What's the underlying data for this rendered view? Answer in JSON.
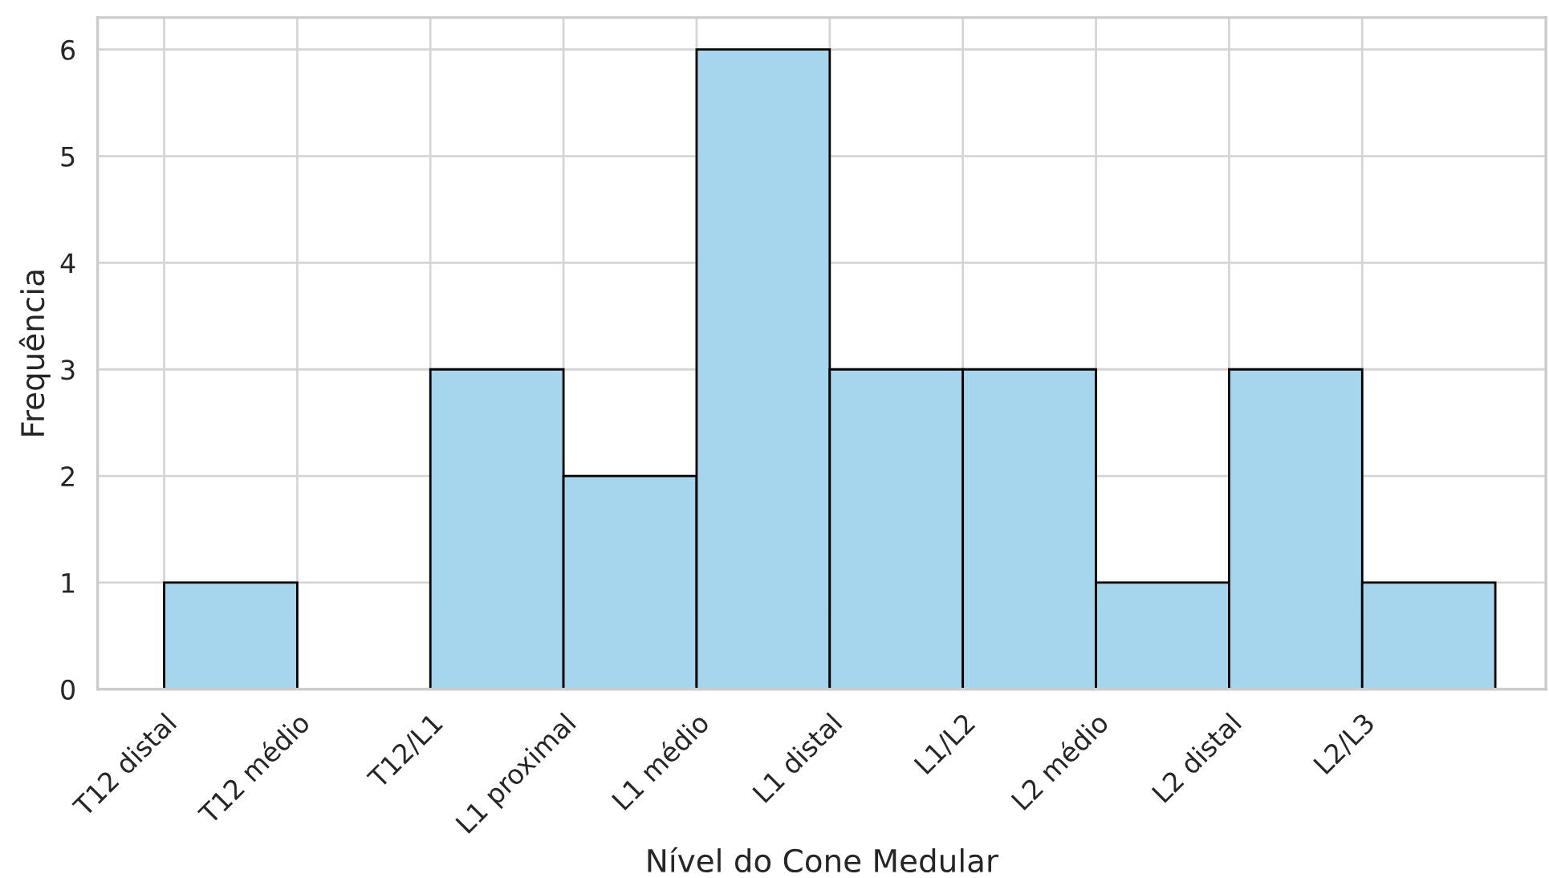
{
  "chart_data": {
    "type": "bar",
    "xlabel": "Nível do Cone Medular",
    "ylabel": "Frequência",
    "categories": [
      "T12 distal",
      "T12 médio",
      "T12/L1",
      "L1 proximal",
      "L1 médio",
      "L1 distal",
      "L1/L2",
      "L2 médio",
      "L2 distal",
      "L2/L3"
    ],
    "values": [
      1,
      0,
      3,
      2,
      6,
      3,
      3,
      1,
      3,
      1
    ],
    "color": "#a6d5ee",
    "ylim": [
      0,
      6.3
    ],
    "yticks": [
      0,
      1,
      2,
      3,
      4,
      5,
      6
    ],
    "grid": true
  }
}
